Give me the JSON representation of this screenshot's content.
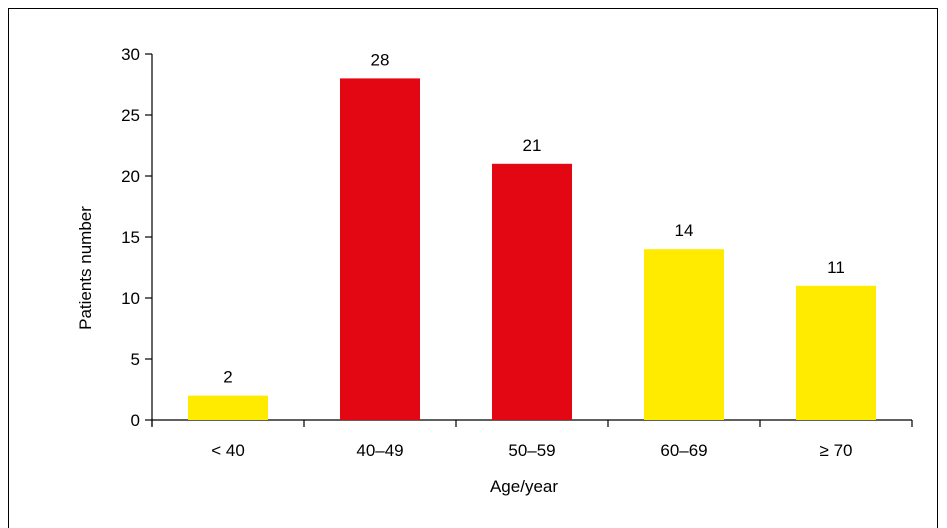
{
  "chart_data": {
    "type": "bar",
    "categories": [
      "< 40",
      "40–49",
      "50–59",
      "60–69",
      "≥ 70"
    ],
    "values": [
      2,
      28,
      21,
      14,
      11
    ],
    "data_labels": [
      "2",
      "28",
      "21",
      "14",
      "11"
    ],
    "bar_colors": [
      "#FFEB00",
      "#E30613",
      "#E30613",
      "#FFEB00",
      "#FFEB00"
    ],
    "title": "",
    "xlabel": "Age/year",
    "ylabel": "Patients number",
    "ylim": [
      0,
      30
    ],
    "yticks": [
      0,
      5,
      10,
      15,
      20,
      25,
      30
    ],
    "ytick_labels": [
      "0",
      "5",
      "10",
      "15",
      "20",
      "25",
      "30"
    ],
    "grid": false,
    "legend": "none"
  }
}
